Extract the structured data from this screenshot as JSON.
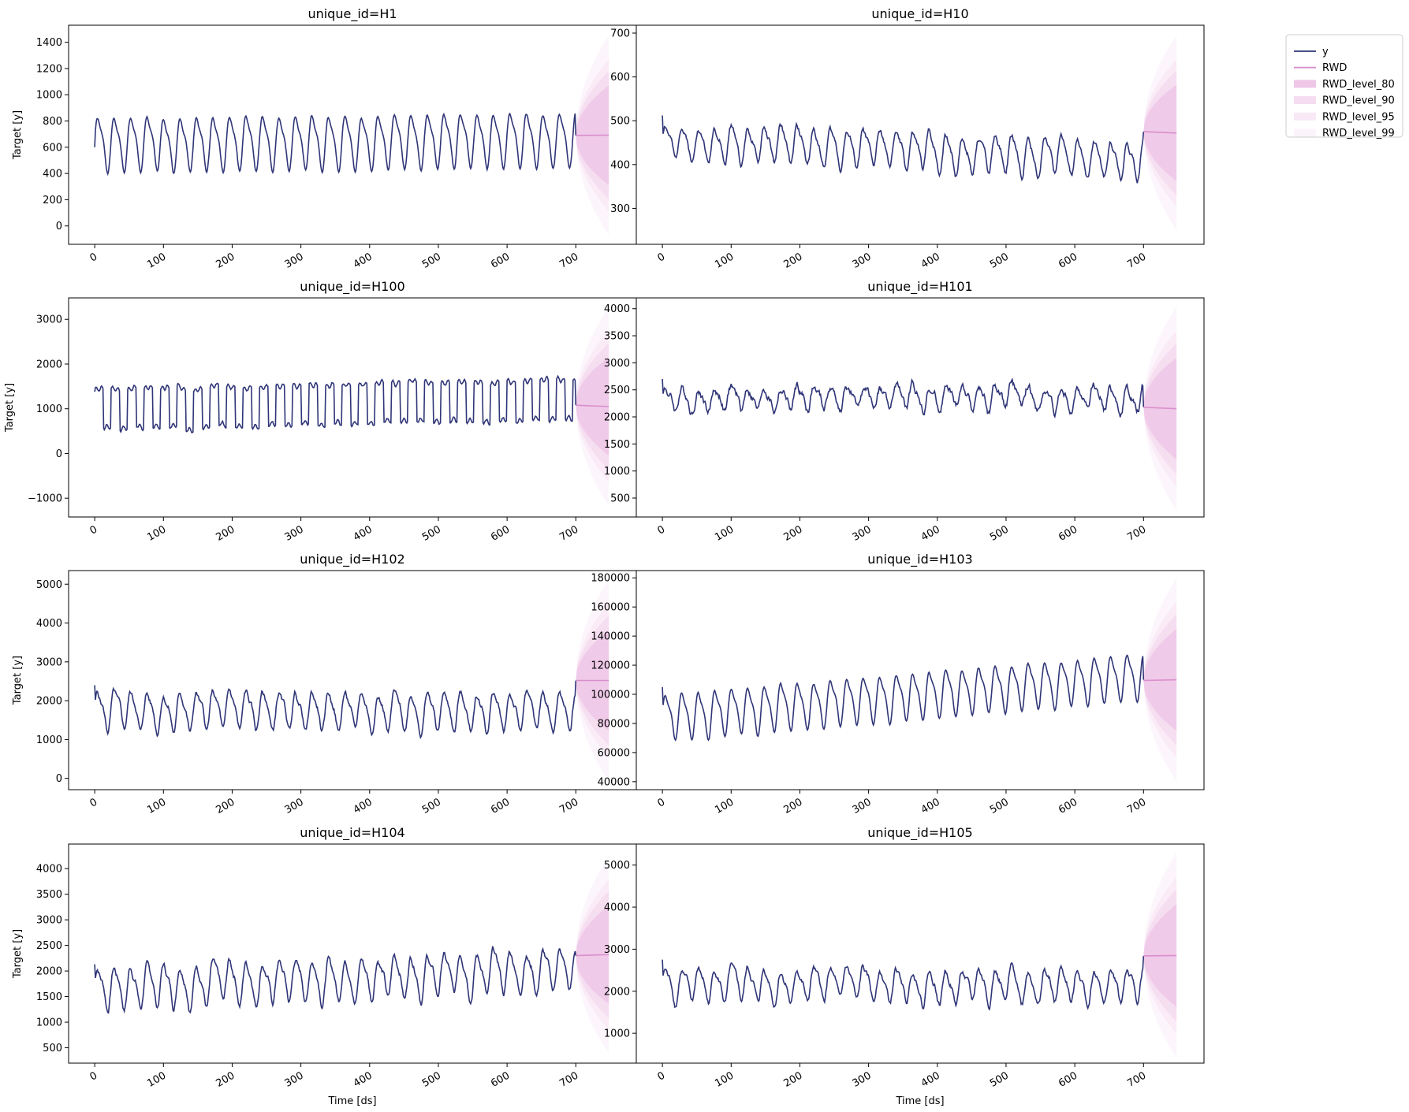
{
  "colors": {
    "y": "#2f3577",
    "forecast": "#d98fcc",
    "band_80": "#efc7e7",
    "band_90": "#f5dcf0",
    "band_95": "#f9e9f6",
    "band_99": "#fcf4fb",
    "axis": "#000000"
  },
  "legend": {
    "items": [
      {
        "label": "y",
        "kind": "line",
        "color_key": "y"
      },
      {
        "label": "RWD",
        "kind": "line",
        "color_key": "forecast"
      },
      {
        "label": "RWD_level_80",
        "kind": "patch",
        "color_key": "band_80"
      },
      {
        "label": "RWD_level_90",
        "kind": "patch",
        "color_key": "band_90"
      },
      {
        "label": "RWD_level_95",
        "kind": "patch",
        "color_key": "band_95"
      },
      {
        "label": "RWD_level_99",
        "kind": "patch",
        "color_key": "band_99"
      }
    ]
  },
  "chart_data": [
    {
      "type": "line",
      "title": "unique_id=H1",
      "ylabel": "Target [y]",
      "xlabel": "",
      "xlim": [
        -38,
        788
      ],
      "ylim": [
        -140,
        1530
      ],
      "xticks": [
        0,
        100,
        200,
        300,
        400,
        500,
        600,
        700
      ],
      "yticks": [
        0,
        200,
        400,
        600,
        800,
        1000,
        1200,
        1400
      ],
      "history_end": 700,
      "horizon": 48,
      "series_y": {
        "name": "y",
        "period": 24,
        "base": 630,
        "amp": 220,
        "drift": 0.05,
        "noise": 12,
        "start": 600,
        "last": 690,
        "seed": 1
      },
      "forecast": {
        "name": "RWD",
        "start": 690,
        "end": 692,
        "bands": [
          {
            "name": "RWD_level_80",
            "half_width_end": 380
          },
          {
            "name": "RWD_level_90",
            "half_width_end": 488
          },
          {
            "name": "RWD_level_95",
            "half_width_end": 580
          },
          {
            "name": "RWD_level_99",
            "half_width_end": 762
          }
        ]
      }
    },
    {
      "type": "line",
      "title": "unique_id=H10",
      "ylabel": "",
      "xlabel": "",
      "xlim": [
        -38,
        788
      ],
      "ylim": [
        218,
        718
      ],
      "xticks": [
        0,
        100,
        200,
        300,
        400,
        500,
        600,
        700
      ],
      "yticks": [
        300,
        400,
        500,
        600,
        700
      ],
      "history_end": 700,
      "horizon": 48,
      "series_y": {
        "name": "y",
        "period": 24,
        "base": 455,
        "amp": 45,
        "drift": -0.06,
        "noise": 10,
        "start": 512,
        "last": 475,
        "seed": 2
      },
      "forecast": {
        "name": "RWD",
        "start": 475,
        "end": 472,
        "bands": [
          {
            "name": "RWD_level_80",
            "half_width_end": 110
          },
          {
            "name": "RWD_level_90",
            "half_width_end": 142
          },
          {
            "name": "RWD_level_95",
            "half_width_end": 168
          },
          {
            "name": "RWD_level_99",
            "half_width_end": 222
          }
        ]
      }
    },
    {
      "type": "line",
      "title": "unique_id=H100",
      "ylabel": "Target [y]",
      "xlabel": "",
      "xlim": [
        -38,
        788
      ],
      "ylim": [
        -1420,
        3480
      ],
      "xticks": [
        0,
        100,
        200,
        300,
        400,
        500,
        600,
        700
      ],
      "yticks": [
        -1000,
        0,
        1000,
        2000,
        3000
      ],
      "history_end": 700,
      "horizon": 48,
      "series_y": {
        "name": "y",
        "period": 24,
        "base": 1000,
        "amp": 480,
        "drift": 0.3,
        "noise": 40,
        "start": 1380,
        "last": 1080,
        "seed": 3,
        "square": true
      },
      "forecast": {
        "name": "RWD",
        "start": 1080,
        "end": 1050,
        "bands": [
          {
            "name": "RWD_level_80",
            "half_width_end": 1100
          },
          {
            "name": "RWD_level_90",
            "half_width_end": 1420
          },
          {
            "name": "RWD_level_95",
            "half_width_end": 1690
          },
          {
            "name": "RWD_level_99",
            "half_width_end": 2220
          }
        ]
      }
    },
    {
      "type": "line",
      "title": "unique_id=H101",
      "ylabel": "",
      "xlabel": "",
      "xlim": [
        -38,
        788
      ],
      "ylim": [
        150,
        4200
      ],
      "xticks": [
        0,
        100,
        200,
        300,
        400,
        500,
        600,
        700
      ],
      "yticks": [
        500,
        1000,
        1500,
        2000,
        2500,
        3000,
        3500,
        4000
      ],
      "history_end": 700,
      "horizon": 48,
      "series_y": {
        "name": "y",
        "period": 24,
        "base": 2350,
        "amp": 220,
        "drift": 0,
        "noise": 110,
        "start": 2700,
        "last": 2180,
        "seed": 4
      },
      "forecast": {
        "name": "RWD",
        "start": 2180,
        "end": 2150,
        "bands": [
          {
            "name": "RWD_level_80",
            "half_width_end": 940
          },
          {
            "name": "RWD_level_90",
            "half_width_end": 1210
          },
          {
            "name": "RWD_level_95",
            "half_width_end": 1440
          },
          {
            "name": "RWD_level_99",
            "half_width_end": 1890
          }
        ]
      }
    },
    {
      "type": "line",
      "title": "unique_id=H102",
      "ylabel": "Target [y]",
      "xlabel": "",
      "xlim": [
        -38,
        788
      ],
      "ylim": [
        -290,
        5350
      ],
      "xticks": [
        0,
        100,
        200,
        300,
        400,
        500,
        600,
        700
      ],
      "yticks": [
        0,
        1000,
        2000,
        3000,
        4000,
        5000
      ],
      "history_end": 700,
      "horizon": 48,
      "series_y": {
        "name": "y",
        "period": 24,
        "base": 1750,
        "amp": 520,
        "drift": 0,
        "noise": 110,
        "start": 2400,
        "last": 2520,
        "seed": 5
      },
      "forecast": {
        "name": "RWD",
        "start": 2520,
        "end": 2520,
        "bands": [
          {
            "name": "RWD_level_80",
            "half_width_end": 1300
          },
          {
            "name": "RWD_level_90",
            "half_width_end": 1670
          },
          {
            "name": "RWD_level_95",
            "half_width_end": 1990
          },
          {
            "name": "RWD_level_99",
            "half_width_end": 2610
          }
        ]
      }
    },
    {
      "type": "line",
      "title": "unique_id=H103",
      "ylabel": "",
      "xlabel": "",
      "xlim": [
        -38,
        788
      ],
      "ylim": [
        34500,
        185000
      ],
      "xticks": [
        0,
        100,
        200,
        300,
        400,
        500,
        600,
        700
      ],
      "yticks": [
        40000,
        60000,
        80000,
        100000,
        120000,
        140000,
        160000,
        180000
      ],
      "history_end": 700,
      "horizon": 48,
      "series_y": {
        "name": "y",
        "period": 24,
        "base": 85000,
        "amp": 17000,
        "drift": 40,
        "noise": 900,
        "start": 105000,
        "last": 110000,
        "seed": 6
      },
      "forecast": {
        "name": "RWD",
        "start": 109500,
        "end": 110000,
        "bands": [
          {
            "name": "RWD_level_80",
            "half_width_end": 35000
          },
          {
            "name": "RWD_level_90",
            "half_width_end": 45000
          },
          {
            "name": "RWD_level_95",
            "half_width_end": 53500
          },
          {
            "name": "RWD_level_99",
            "half_width_end": 70000
          }
        ]
      }
    },
    {
      "type": "line",
      "title": "unique_id=H104",
      "ylabel": "Target [y]",
      "xlabel": "Time [ds]",
      "xlim": [
        -38,
        788
      ],
      "ylim": [
        200,
        4480
      ],
      "xticks": [
        0,
        100,
        200,
        300,
        400,
        500,
        600,
        700
      ],
      "yticks": [
        500,
        1000,
        1500,
        2000,
        2500,
        3000,
        3500,
        4000
      ],
      "history_end": 700,
      "horizon": 48,
      "series_y": {
        "name": "y",
        "period": 24,
        "base": 1700,
        "amp": 430,
        "drift": 0.5,
        "noise": 90,
        "start": 2130,
        "last": 2300,
        "seed": 7
      },
      "forecast": {
        "name": "RWD",
        "start": 2300,
        "end": 2320,
        "bands": [
          {
            "name": "RWD_level_80",
            "half_width_end": 960
          },
          {
            "name": "RWD_level_90",
            "half_width_end": 1240
          },
          {
            "name": "RWD_level_95",
            "half_width_end": 1470
          },
          {
            "name": "RWD_level_99",
            "half_width_end": 1930
          }
        ]
      }
    },
    {
      "type": "line",
      "title": "unique_id=H105",
      "ylabel": "",
      "xlabel": "Time [ds]",
      "xlim": [
        -38,
        788
      ],
      "ylim": [
        290,
        5500
      ],
      "xticks": [
        0,
        100,
        200,
        300,
        400,
        500,
        600,
        700
      ],
      "yticks": [
        1000,
        2000,
        3000,
        4000,
        5000
      ],
      "history_end": 700,
      "horizon": 48,
      "series_y": {
        "name": "y",
        "period": 24,
        "base": 2150,
        "amp": 420,
        "drift": 0,
        "noise": 110,
        "start": 2750,
        "last": 2840,
        "seed": 8
      },
      "forecast": {
        "name": "RWD",
        "start": 2840,
        "end": 2850,
        "bands": [
          {
            "name": "RWD_level_80",
            "half_width_end": 1220
          },
          {
            "name": "RWD_level_90",
            "half_width_end": 1570
          },
          {
            "name": "RWD_level_95",
            "half_width_end": 1870
          },
          {
            "name": "RWD_level_99",
            "half_width_end": 2450
          }
        ]
      }
    }
  ]
}
